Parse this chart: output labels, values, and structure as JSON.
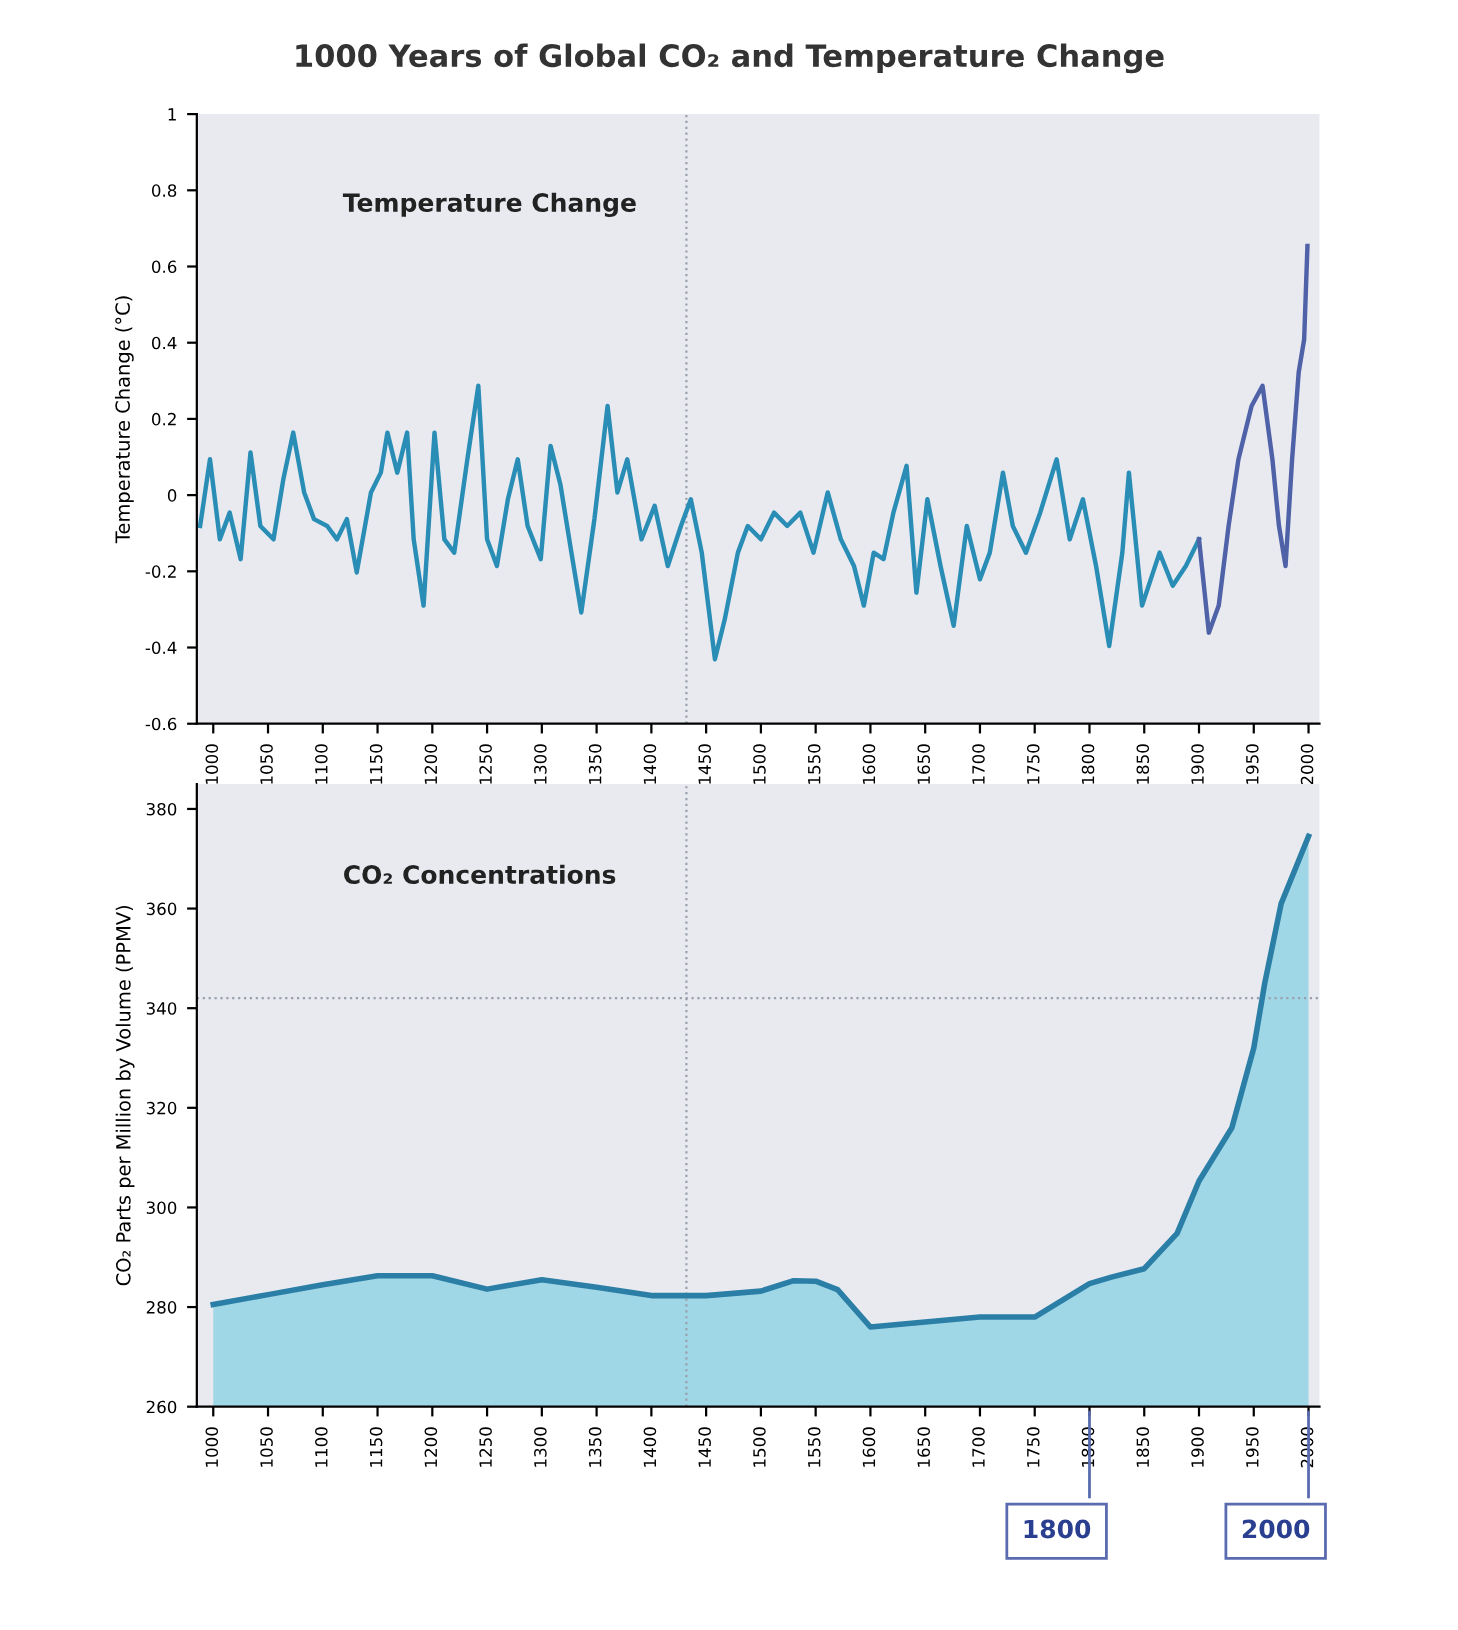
{
  "chart_data": [
    {
      "type": "line",
      "title": "1000 Years of Global CO₂ and Temperature Change",
      "ylabel": "Temperature Change (°C)",
      "annotations": [
        "Temperature Change"
      ],
      "xlim": [
        985,
        2010
      ],
      "xticks": [
        1000,
        1050,
        1100,
        1150,
        1200,
        1250,
        1300,
        1350,
        1400,
        1450,
        1500,
        1550,
        1600,
        1650,
        1700,
        1750,
        1800,
        1850,
        1900,
        1950,
        2000
      ],
      "ylim": [
        -0.6,
        1
      ],
      "yticks": [
        -0.6,
        -0.4,
        -0.2,
        0,
        0.2,
        0.4,
        0.6,
        0.8,
        1
      ],
      "grid": false,
      "legend": false,
      "marker": "none",
      "line_style": "solid",
      "ref_lines": [
        {
          "axis": "x",
          "value": 1432,
          "color": "#9aa0ad",
          "line_style": "dotted"
        }
      ],
      "series": [
        {
          "color": "#2a8db5",
          "x": [
            988,
            997,
            1006,
            1015,
            1025,
            1034,
            1043,
            1055,
            1064,
            1073,
            1083,
            1092,
            1104,
            1113,
            1122,
            1131,
            1144,
            1153,
            1159,
            1168,
            1177,
            1183,
            1192,
            1202,
            1211,
            1220,
            1232,
            1242,
            1250,
            1259,
            1269,
            1278,
            1287,
            1299,
            1308,
            1317,
            1327,
            1336,
            1348,
            1360,
            1369,
            1378,
            1391,
            1403,
            1415,
            1427,
            1436,
            1446,
            1458,
            1467,
            1479,
            1488,
            1500,
            1512,
            1524,
            1536,
            1548,
            1561,
            1573,
            1585,
            1594,
            1603,
            1612,
            1621,
            1633,
            1642,
            1652,
            1664,
            1676,
            1688,
            1700,
            1709,
            1721,
            1730,
            1742,
            1755,
            1770,
            1782,
            1794,
            1806,
            1818,
            1830,
            1836,
            1848,
            1864,
            1876,
            1888,
            1900
          ],
          "values": [
            -0.081,
            0.094,
            -0.116,
            -0.046,
            -0.168,
            0.112,
            -0.081,
            -0.116,
            0.042,
            0.164,
            0.007,
            -0.063,
            -0.081,
            -0.116,
            -0.063,
            -0.203,
            0.007,
            0.059,
            0.164,
            0.059,
            0.164,
            -0.116,
            -0.29,
            0.164,
            -0.116,
            -0.151,
            0.094,
            0.287,
            -0.116,
            -0.186,
            -0.011,
            0.094,
            -0.081,
            -0.168,
            0.129,
            0.027,
            -0.151,
            -0.308,
            -0.063,
            0.234,
            0.007,
            0.094,
            -0.116,
            -0.028,
            -0.186,
            -0.081,
            -0.011,
            -0.151,
            -0.431,
            -0.326,
            -0.151,
            -0.081,
            -0.116,
            -0.046,
            -0.081,
            -0.046,
            -0.151,
            0.007,
            -0.116,
            -0.186,
            -0.29,
            -0.151,
            -0.168,
            -0.046,
            0.077,
            -0.256,
            -0.011,
            -0.186,
            -0.343,
            -0.081,
            -0.221,
            -0.151,
            0.059,
            -0.081,
            -0.151,
            -0.046,
            0.094,
            -0.116,
            -0.011,
            -0.186,
            -0.396,
            -0.151,
            0.059,
            -0.29,
            -0.151,
            -0.238,
            -0.186,
            -0.116
          ]
        },
        {
          "color": "#4f62a8",
          "x": [
            1900,
            1909,
            1918,
            1927,
            1936,
            1948,
            1958,
            1967,
            1973,
            1979,
            1985,
            1991,
            1996,
            1999
          ],
          "values": [
            -0.116,
            -0.361,
            -0.29,
            -0.081,
            0.094,
            0.234,
            0.287,
            0.094,
            -0.081,
            -0.186,
            0.094,
            0.322,
            0.409,
            0.654
          ]
        }
      ]
    },
    {
      "type": "area",
      "ylabel": "CO₂ Parts per Million by Volume (PPMV)",
      "annotations": [
        "CO₂ Concentrations",
        {
          "text": "1800",
          "x": 1800,
          "y": 260
        },
        {
          "text": "2000",
          "x": 2000,
          "y": 260
        }
      ],
      "xlim": [
        985,
        2010
      ],
      "xticks": [
        1000,
        1050,
        1100,
        1150,
        1200,
        1250,
        1300,
        1350,
        1400,
        1450,
        1500,
        1550,
        1600,
        1650,
        1700,
        1750,
        1800,
        1850,
        1900,
        1950,
        2000
      ],
      "ylim": [
        260,
        385
      ],
      "yticks": [
        260,
        280,
        300,
        320,
        340,
        360,
        380
      ],
      "grid": false,
      "legend": false,
      "ref_lines": [
        {
          "axis": "x",
          "value": 1432,
          "color": "#9aa0ad",
          "line_style": "dotted"
        },
        {
          "axis": "y",
          "value": 342,
          "color": "#9aa0ad",
          "line_style": "dotted"
        }
      ],
      "series": [
        {
          "color": "#9fd7e6",
          "x": [
            1000,
            1050,
            1100,
            1150,
            1200,
            1250,
            1300,
            1350,
            1400,
            1450,
            1500,
            1530,
            1550,
            1570,
            1600,
            1650,
            1700,
            1750,
            1800,
            1820,
            1850,
            1880,
            1900,
            1930,
            1950,
            1960,
            1975,
            2000
          ],
          "values": [
            280.5,
            282.5,
            284.5,
            286.3,
            286.3,
            283.6,
            285.5,
            284,
            282.3,
            282.3,
            283.2,
            285.3,
            285.2,
            283.5,
            276,
            277,
            278,
            278,
            284.7,
            286,
            287.7,
            294.8,
            305.3,
            316,
            332,
            345,
            361,
            374.5
          ]
        }
      ]
    }
  ]
}
